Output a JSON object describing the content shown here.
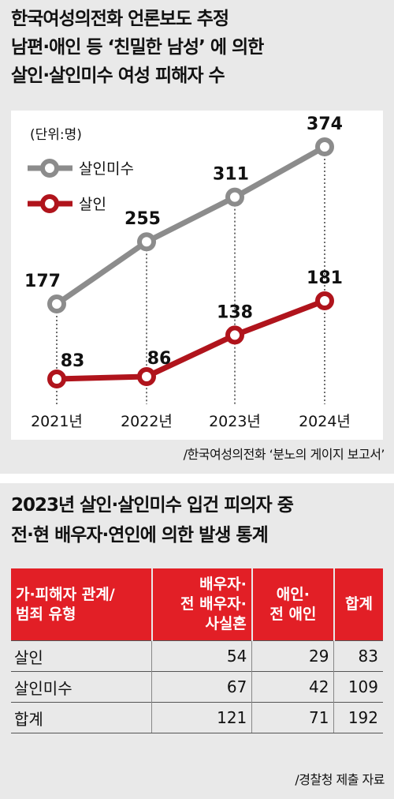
{
  "chart": {
    "title_lines": [
      "한국여성의전화 언론보도 추정",
      "남편·애인 등 ‘친밀한 남성’ 에 의한",
      "살인·살인미수 여성 피해자 수"
    ],
    "unit": "(단위:명)",
    "source": "/한국여성의전화 ‘분노의 게이지 보고서’"
  },
  "chart_data": {
    "type": "line",
    "x": [
      "2021년",
      "2022년",
      "2023년",
      "2024년"
    ],
    "series": [
      {
        "name": "살인미수",
        "values": [
          177,
          255,
          311,
          374
        ],
        "color": "#8c8c8c"
      },
      {
        "name": "살인",
        "values": [
          83,
          86,
          138,
          181
        ],
        "color": "#b0141c"
      }
    ],
    "ylim": [
      0,
      400
    ],
    "legend_position": "top-left",
    "grid": false
  },
  "table": {
    "title_lines": [
      "2023년 살인·살인미수 입건 피의자 중",
      "전·현 배우자·연인에 의한 발생 통계"
    ],
    "header_color": "#e21f26",
    "columns": [
      [
        "가·피해자 관계/",
        "범죄 유형"
      ],
      [
        "배우자·",
        "전 배우자·",
        "사실혼"
      ],
      [
        "애인·",
        "전 애인"
      ],
      [
        "합계"
      ]
    ],
    "rows": [
      [
        "살인",
        "54",
        "29",
        "83"
      ],
      [
        "살인미수",
        "67",
        "42",
        "109"
      ],
      [
        "합계",
        "121",
        "71",
        "192"
      ]
    ],
    "source": "/경찰청 제출 자료"
  }
}
